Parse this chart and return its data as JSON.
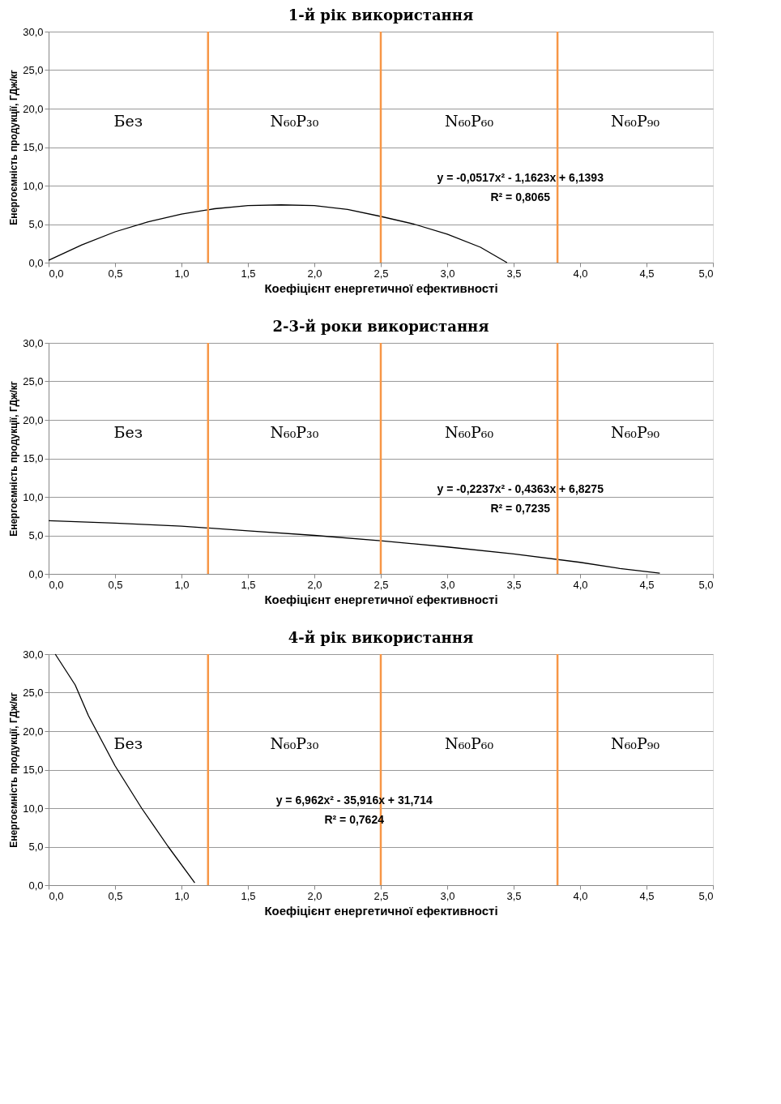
{
  "chart_data": [
    {
      "type": "line",
      "title": "1-й рік використання",
      "xlabel": "Коефіцієнт енергетичної ефективності",
      "ylabel": "Енергоємність продукції, ГДж/кг",
      "xlim": [
        0,
        5
      ],
      "ylim": [
        0,
        30
      ],
      "xticks": [
        {
          "value": 0,
          "label": "0,0"
        },
        {
          "value": 0.5,
          "label": "0,5"
        },
        {
          "value": 1,
          "label": "1,0"
        },
        {
          "value": 1.5,
          "label": "1,5"
        },
        {
          "value": 2,
          "label": "2,0"
        },
        {
          "value": 2.5,
          "label": "2,5"
        },
        {
          "value": 3,
          "label": "3,0"
        },
        {
          "value": 3.5,
          "label": "3,5"
        },
        {
          "value": 4,
          "label": "4,0"
        },
        {
          "value": 4.5,
          "label": "4,5"
        },
        {
          "value": 5,
          "label": "5,0"
        }
      ],
      "yticks": [
        {
          "value": 0,
          "label": "0,0"
        },
        {
          "value": 5,
          "label": "5,0"
        },
        {
          "value": 10,
          "label": "10,0"
        },
        {
          "value": 15,
          "label": "15,0"
        },
        {
          "value": 20,
          "label": "20,0"
        },
        {
          "value": 25,
          "label": "25,0"
        },
        {
          "value": 30,
          "label": "30,0"
        }
      ],
      "grid": "y",
      "series": [
        {
          "color": "#000000",
          "x": [
            0,
            0.25,
            0.5,
            0.75,
            1.0,
            1.25,
            1.5,
            1.75,
            2.0,
            2.25,
            2.5,
            2.75,
            3.0,
            3.25,
            3.45
          ],
          "values": [
            0.3,
            2.3,
            4.0,
            5.3,
            6.3,
            7.0,
            7.4,
            7.5,
            7.4,
            6.9,
            6.0,
            5.0,
            3.7,
            2.0,
            0.0
          ]
        }
      ],
      "ref_lines": [
        {
          "axis": "x",
          "value": 1.2,
          "color": "#f79646"
        },
        {
          "axis": "x",
          "value": 2.5,
          "color": "#f79646"
        },
        {
          "axis": "x",
          "value": 3.83,
          "color": "#f79646"
        }
      ],
      "annotations": [
        "Без",
        "N₆₀P₃₀",
        "N₆₀P₆₀",
        "N₆₀P₉₀",
        "y = -0,0517x² - 1,1623x + 6,1393",
        "R² = 0,8065"
      ]
    },
    {
      "type": "line",
      "title": "2-3-й роки використання",
      "xlabel": "Коефіцієнт енергетичної ефективності",
      "ylabel": "Енергоємність продукції, ГДж/кг",
      "xlim": [
        0,
        5
      ],
      "ylim": [
        0,
        30
      ],
      "xticks": [
        {
          "value": 0,
          "label": "0,0"
        },
        {
          "value": 0.5,
          "label": "0,5"
        },
        {
          "value": 1,
          "label": "1,0"
        },
        {
          "value": 1.5,
          "label": "1,5"
        },
        {
          "value": 2,
          "label": "2,0"
        },
        {
          "value": 2.5,
          "label": "2,5"
        },
        {
          "value": 3,
          "label": "3,0"
        },
        {
          "value": 3.5,
          "label": "3,5"
        },
        {
          "value": 4,
          "label": "4,0"
        },
        {
          "value": 4.5,
          "label": "4,5"
        },
        {
          "value": 5,
          "label": "5,0"
        }
      ],
      "yticks": [
        {
          "value": 0,
          "label": "0,0"
        },
        {
          "value": 5,
          "label": "5,0"
        },
        {
          "value": 10,
          "label": "10,0"
        },
        {
          "value": 15,
          "label": "15,0"
        },
        {
          "value": 20,
          "label": "20,0"
        },
        {
          "value": 25,
          "label": "25,0"
        },
        {
          "value": 30,
          "label": "30,0"
        }
      ],
      "grid": "y",
      "series": [
        {
          "color": "#000000",
          "x": [
            0,
            0.5,
            1.0,
            1.5,
            2.0,
            2.5,
            3.0,
            3.5,
            4.0,
            4.3,
            4.6
          ],
          "values": [
            6.9,
            6.6,
            6.2,
            5.6,
            5.0,
            4.3,
            3.5,
            2.6,
            1.5,
            0.7,
            0.1
          ]
        }
      ],
      "ref_lines": [
        {
          "axis": "x",
          "value": 1.2,
          "color": "#f79646"
        },
        {
          "axis": "x",
          "value": 2.5,
          "color": "#f79646"
        },
        {
          "axis": "x",
          "value": 3.83,
          "color": "#f79646"
        }
      ],
      "annotations": [
        "Без",
        "N₆₀P₃₀",
        "N₆₀P₆₀",
        "N₆₀P₉₀",
        "y = -0,2237x² - 0,4363x + 6,8275",
        "R² = 0,7235"
      ]
    },
    {
      "type": "line",
      "title": "4-й рік використання",
      "xlabel": "Коефіцієнт енергетичної ефективності",
      "ylabel": "Енергоємність продукції, ГДж/кг",
      "xlim": [
        0,
        5
      ],
      "ylim": [
        0,
        30
      ],
      "xticks": [
        {
          "value": 0,
          "label": "0,0"
        },
        {
          "value": 0.5,
          "label": "0,5"
        },
        {
          "value": 1,
          "label": "1,0"
        },
        {
          "value": 1.5,
          "label": "1,5"
        },
        {
          "value": 2,
          "label": "2,0"
        },
        {
          "value": 2.5,
          "label": "2,5"
        },
        {
          "value": 3,
          "label": "3,0"
        },
        {
          "value": 3.5,
          "label": "3,5"
        },
        {
          "value": 4,
          "label": "4,0"
        },
        {
          "value": 4.5,
          "label": "4,5"
        },
        {
          "value": 5,
          "label": "5,0"
        }
      ],
      "yticks": [
        {
          "value": 0,
          "label": "0,0"
        },
        {
          "value": 5,
          "label": "5,0"
        },
        {
          "value": 10,
          "label": "10,0"
        },
        {
          "value": 15,
          "label": "15,0"
        },
        {
          "value": 20,
          "label": "20,0"
        },
        {
          "value": 25,
          "label": "25,0"
        },
        {
          "value": 30,
          "label": "30,0"
        }
      ],
      "grid": "y",
      "series": [
        {
          "color": "#000000",
          "x": [
            0.05,
            0.2,
            0.3,
            0.5,
            0.7,
            0.9,
            1.1
          ],
          "values": [
            30,
            26,
            22,
            15.5,
            10,
            5,
            0.3
          ]
        }
      ],
      "ref_lines": [
        {
          "axis": "x",
          "value": 1.2,
          "color": "#f79646"
        },
        {
          "axis": "x",
          "value": 2.5,
          "color": "#f79646"
        },
        {
          "axis": "x",
          "value": 3.83,
          "color": "#f79646"
        }
      ],
      "annotations": [
        "Без",
        "N₆₀P₃₀",
        "N₆₀P₆₀",
        "N₆₀P₉₀",
        "y = 6,962x² - 35,916x + 31,714",
        "R² = 0,7624"
      ]
    }
  ]
}
